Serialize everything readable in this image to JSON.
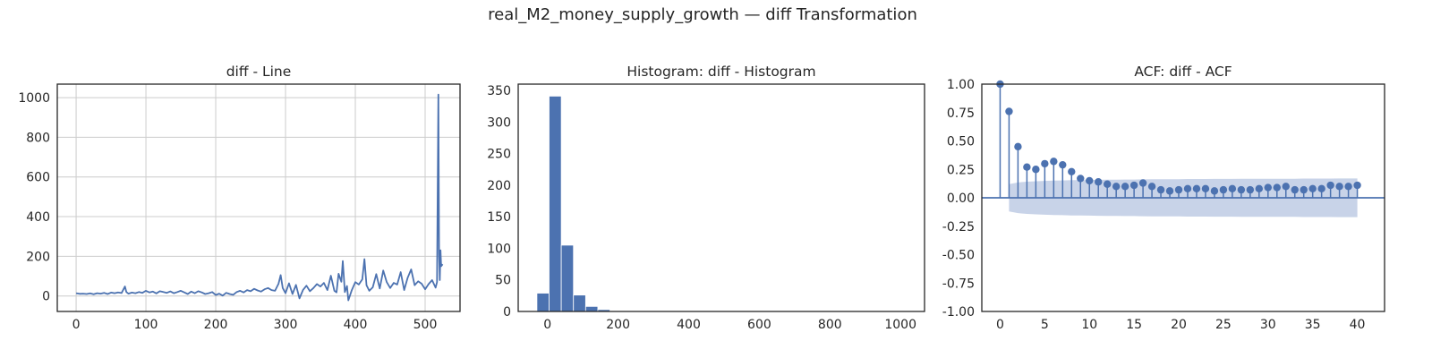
{
  "figure": {
    "suptitle": "real_M2_money_supply_growth — diff Transformation"
  },
  "chart_data": [
    {
      "type": "line",
      "title": "diff - Line",
      "xlabel": "",
      "ylabel": "",
      "xlim": [
        -27,
        550
      ],
      "ylim": [
        -78,
        1068
      ],
      "grid": true,
      "xticks": [
        0,
        100,
        200,
        300,
        400,
        500
      ],
      "yticks": [
        0,
        200,
        400,
        600,
        800,
        1000
      ],
      "color": "#4c72b0",
      "series": [
        {
          "x": [
            0,
            5,
            10,
            15,
            20,
            25,
            30,
            35,
            40,
            45,
            50,
            55,
            60,
            65,
            70,
            72,
            75,
            80,
            85,
            90,
            95,
            100,
            105,
            110,
            115,
            120,
            125,
            130,
            135,
            140,
            145,
            150,
            155,
            160,
            165,
            170,
            175,
            180,
            185,
            190,
            195,
            200,
            205,
            210,
            215,
            220,
            225,
            230,
            235,
            240,
            245,
            250,
            255,
            260,
            265,
            270,
            275,
            280,
            285,
            290,
            293,
            296,
            300,
            305,
            310,
            315,
            320,
            325,
            330,
            335,
            340,
            345,
            350,
            355,
            360,
            365,
            370,
            373,
            376,
            380,
            382,
            385,
            388,
            390,
            395,
            400,
            405,
            410,
            413,
            416,
            420,
            425,
            430,
            435,
            440,
            445,
            450,
            455,
            460,
            465,
            470,
            475,
            480,
            485,
            490,
            495,
            500,
            505,
            510,
            515,
            517,
            519,
            520,
            521,
            522,
            523,
            525
          ],
          "y": [
            14,
            11,
            12,
            10,
            13,
            9,
            14,
            12,
            16,
            10,
            17,
            14,
            18,
            15,
            48,
            20,
            12,
            17,
            14,
            20,
            16,
            26,
            18,
            22,
            13,
            24,
            20,
            16,
            23,
            14,
            20,
            26,
            18,
            10,
            22,
            14,
            24,
            18,
            10,
            14,
            20,
            5,
            12,
            2,
            16,
            10,
            6,
            20,
            26,
            18,
            30,
            24,
            36,
            28,
            22,
            34,
            40,
            30,
            26,
            62,
            105,
            40,
            14,
            64,
            10,
            56,
            -12,
            30,
            52,
            24,
            40,
            60,
            48,
            66,
            30,
            102,
            26,
            18,
            112,
            72,
            176,
            20,
            50,
            -22,
            30,
            70,
            58,
            84,
            186,
            54,
            26,
            44,
            110,
            38,
            128,
            70,
            40,
            66,
            58,
            120,
            30,
            92,
            134,
            54,
            74,
            62,
            34,
            60,
            80,
            42,
            70,
            1015,
            210,
            80,
            230,
            150,
            160
          ]
        }
      ]
    },
    {
      "type": "bar",
      "title": "Histogram: diff - Histogram",
      "xlabel": "",
      "ylabel": "",
      "xlim": [
        -83,
        1068
      ],
      "ylim": [
        0,
        360
      ],
      "grid": false,
      "xticks": [
        0,
        200,
        400,
        600,
        800,
        1000
      ],
      "yticks": [
        0,
        50,
        100,
        150,
        200,
        250,
        300,
        350
      ],
      "color": "#4c72b0",
      "bin_edges": [
        -30,
        4.5,
        39,
        73.5,
        108,
        142.5,
        177,
        211.5,
        246,
        280.5,
        315,
        349.5,
        384,
        418.5,
        453,
        487.5,
        522,
        556.5,
        591,
        625.5,
        660,
        694.5,
        729,
        763.5,
        798,
        832.5,
        867,
        901.5,
        936,
        970.5,
        1005
      ],
      "values": [
        29,
        341,
        105,
        26,
        8,
        3,
        1,
        1,
        0,
        0,
        0,
        0,
        0,
        0,
        0,
        0,
        0,
        0,
        0,
        0,
        0,
        0,
        0,
        0,
        0,
        0,
        0,
        0,
        0,
        1
      ]
    },
    {
      "type": "stem",
      "title": "ACF: diff - ACF",
      "xlabel": "",
      "ylabel": "",
      "xlim": [
        -2.05,
        43.05
      ],
      "ylim": [
        -1.0,
        1.0
      ],
      "grid": false,
      "xticks": [
        0,
        5,
        10,
        15,
        20,
        25,
        30,
        35,
        40
      ],
      "yticks": [
        -1.0,
        -0.75,
        -0.5,
        -0.25,
        0.0,
        0.25,
        0.5,
        0.75,
        1.0
      ],
      "color": "#4c72b0",
      "band_color": "#c8d3e8",
      "lags": [
        0,
        1,
        2,
        3,
        4,
        5,
        6,
        7,
        8,
        9,
        10,
        11,
        12,
        13,
        14,
        15,
        16,
        17,
        18,
        19,
        20,
        21,
        22,
        23,
        24,
        25,
        26,
        27,
        28,
        29,
        30,
        31,
        32,
        33,
        34,
        35,
        36,
        37,
        38,
        39,
        40
      ],
      "acf": [
        1.0,
        0.76,
        0.45,
        0.27,
        0.25,
        0.3,
        0.32,
        0.29,
        0.23,
        0.17,
        0.15,
        0.14,
        0.12,
        0.1,
        0.1,
        0.11,
        0.13,
        0.1,
        0.07,
        0.06,
        0.07,
        0.08,
        0.08,
        0.08,
        0.06,
        0.07,
        0.08,
        0.07,
        0.07,
        0.08,
        0.09,
        0.09,
        0.1,
        0.07,
        0.07,
        0.08,
        0.08,
        0.11,
        0.1,
        0.1,
        0.11
      ],
      "confint": [
        0.09,
        0.12,
        0.135,
        0.142,
        0.146,
        0.149,
        0.151,
        0.153,
        0.155,
        0.156,
        0.157,
        0.158,
        0.159,
        0.16,
        0.161,
        0.161,
        0.162,
        0.163,
        0.163,
        0.164,
        0.164,
        0.165,
        0.165,
        0.165,
        0.166,
        0.166,
        0.166,
        0.167,
        0.167,
        0.167,
        0.168,
        0.168,
        0.168,
        0.168,
        0.169,
        0.169,
        0.169,
        0.169,
        0.17,
        0.17,
        0.17
      ]
    }
  ]
}
